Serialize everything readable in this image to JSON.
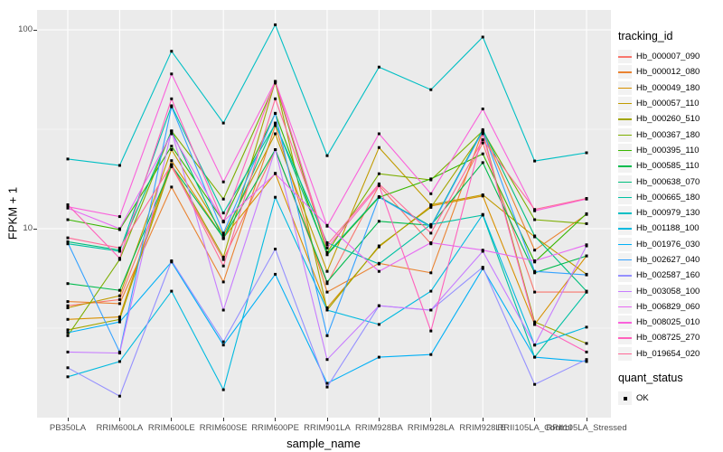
{
  "figure": {
    "y_axis": {
      "title": "FPKM + 1",
      "ticks": [
        {
          "label": "100",
          "value": 100
        },
        {
          "label": "10",
          "value": 10
        }
      ]
    },
    "x_axis": {
      "title": "sample_name"
    },
    "legend": {
      "color_title": "tracking_id",
      "shape_title": "quant_status",
      "shape_items": [
        {
          "label": "OK"
        }
      ]
    },
    "colors": {
      "panel_bg": "#EBEBEB",
      "grid": "#FFFFFF",
      "tick_text": "#4D4D4D",
      "point": "#000000",
      "legend_key_bg": "#F2F2F2"
    }
  },
  "chart_data": {
    "type": "line",
    "yscale": "log10",
    "ylim": [
      1.12,
      126
    ],
    "grid": true,
    "legend_position": "right",
    "point_shape": "filled-square",
    "xlabel": "sample_name",
    "ylabel": "FPKM + 1",
    "x": [
      "PB350LA",
      "RRIM600LA",
      "RRIM600LE",
      "RRIM600SE",
      "RRIM600PE",
      "RRIM901LA",
      "RRIM928BA",
      "RRIM928LA",
      "RRIM928LE",
      "RRII105LA_Control",
      "RRII105LA_Stressed"
    ],
    "series": [
      {
        "name": "Hb_000007_090",
        "color": "#F8766D",
        "values": [
          4.1,
          4.4,
          20.5,
          7.0,
          25.0,
          5.3,
          16.5,
          8.4,
          27.0,
          4.8,
          4.8
        ]
      },
      {
        "name": "Hb_000012_080",
        "color": "#EA8331",
        "values": [
          4.3,
          4.2,
          16.2,
          5.4,
          33.0,
          4.8,
          6.7,
          6.0,
          31.0,
          7.8,
          11.8
        ]
      },
      {
        "name": "Hb_000049_180",
        "color": "#D89000",
        "values": [
          3.5,
          3.6,
          22.0,
          9.0,
          19.0,
          4.0,
          8.1,
          13.0,
          14.6,
          3.3,
          7.3
        ]
      },
      {
        "name": "Hb_000057_110",
        "color": "#C09B00",
        "values": [
          4.0,
          4.6,
          25.0,
          9.3,
          30.0,
          6.1,
          25.6,
          13.2,
          14.8,
          9.1,
          5.9
        ]
      },
      {
        "name": "Hb_000260_510",
        "color": "#A3A500",
        "values": [
          3.1,
          3.5,
          21.0,
          7.2,
          55.0,
          3.9,
          8.2,
          12.8,
          30.5,
          3.4,
          2.65
        ]
      },
      {
        "name": "Hb_000367_180",
        "color": "#7CAE00",
        "values": [
          2.9,
          7.0,
          31.0,
          14.1,
          54.0,
          7.6,
          18.9,
          17.6,
          31.0,
          11.1,
          10.6
        ]
      },
      {
        "name": "Hb_000395_110",
        "color": "#39B600",
        "values": [
          11.1,
          9.9,
          26.0,
          10.9,
          38.0,
          7.4,
          14.4,
          17.8,
          23.8,
          6.8,
          11.9
        ]
      },
      {
        "name": "Hb_000585_110",
        "color": "#00BB4E",
        "values": [
          5.3,
          4.9,
          20.8,
          9.0,
          25.0,
          5.4,
          10.9,
          10.4,
          21.5,
          6.0,
          7.3
        ]
      },
      {
        "name": "Hb_000638_070",
        "color": "#00BF7D",
        "values": [
          8.6,
          7.8,
          31.0,
          8.9,
          34.0,
          7.5,
          14.5,
          10.3,
          31.5,
          9.2,
          4.85
        ]
      },
      {
        "name": "Hb_000665_180",
        "color": "#00C1A3",
        "values": [
          8.4,
          7.7,
          41.5,
          12.0,
          33.6,
          8.5,
          6.65,
          10.5,
          11.7,
          2.26,
          4.8
        ]
      },
      {
        "name": "Hb_000979_130",
        "color": "#00BFC4",
        "values": [
          22.4,
          20.8,
          78.0,
          34.0,
          106.0,
          23.3,
          65.0,
          50.0,
          92.0,
          21.9,
          24.1
        ]
      },
      {
        "name": "Hb_001188_100",
        "color": "#00BAE0",
        "values": [
          1.8,
          2.15,
          4.85,
          1.55,
          14.4,
          3.9,
          3.3,
          4.85,
          11.8,
          2.6,
          3.2
        ]
      },
      {
        "name": "Hb_001976_030",
        "color": "#00B0F6",
        "values": [
          3.0,
          3.4,
          6.8,
          2.6,
          5.9,
          1.67,
          2.26,
          2.33,
          6.3,
          2.26,
          2.15
        ]
      },
      {
        "name": "Hb_002627_040",
        "color": "#35A2FF",
        "values": [
          8.5,
          2.4,
          41.0,
          9.5,
          38.0,
          2.9,
          14.4,
          10.2,
          31.0,
          6.1,
          5.86
        ]
      },
      {
        "name": "Hb_002587_160",
        "color": "#9590FF",
        "values": [
          2.0,
          1.44,
          6.9,
          2.7,
          7.9,
          1.6,
          4.1,
          3.9,
          6.4,
          1.65,
          2.2
        ]
      },
      {
        "name": "Hb_003058_100",
        "color": "#C77CFF",
        "values": [
          2.4,
          2.37,
          31.0,
          3.9,
          25.0,
          2.2,
          4.1,
          3.9,
          7.7,
          2.6,
          8.2
        ]
      },
      {
        "name": "Hb_006829_060",
        "color": "#E76BF3",
        "values": [
          12.7,
          10.0,
          30.0,
          10.9,
          18.9,
          10.4,
          6.1,
          8.5,
          7.8,
          6.9,
          8.3
        ]
      },
      {
        "name": "Hb_008025_010",
        "color": "#FA62DB",
        "values": [
          12.9,
          11.5,
          60.0,
          17.2,
          55.0,
          10.3,
          30.0,
          15.0,
          40.0,
          12.3,
          14.1
        ]
      },
      {
        "name": "Hb_008725_270",
        "color": "#FF62BC",
        "values": [
          13.2,
          7.1,
          45.0,
          10.8,
          55.0,
          8.0,
          16.5,
          3.06,
          30.0,
          3.3,
          2.4
        ]
      },
      {
        "name": "Hb_019654_020",
        "color": "#FF6A98",
        "values": [
          9.0,
          8.0,
          21.0,
          6.5,
          45.0,
          8.3,
          16.8,
          9.5,
          28.0,
          12.5,
          14.2
        ]
      }
    ]
  }
}
